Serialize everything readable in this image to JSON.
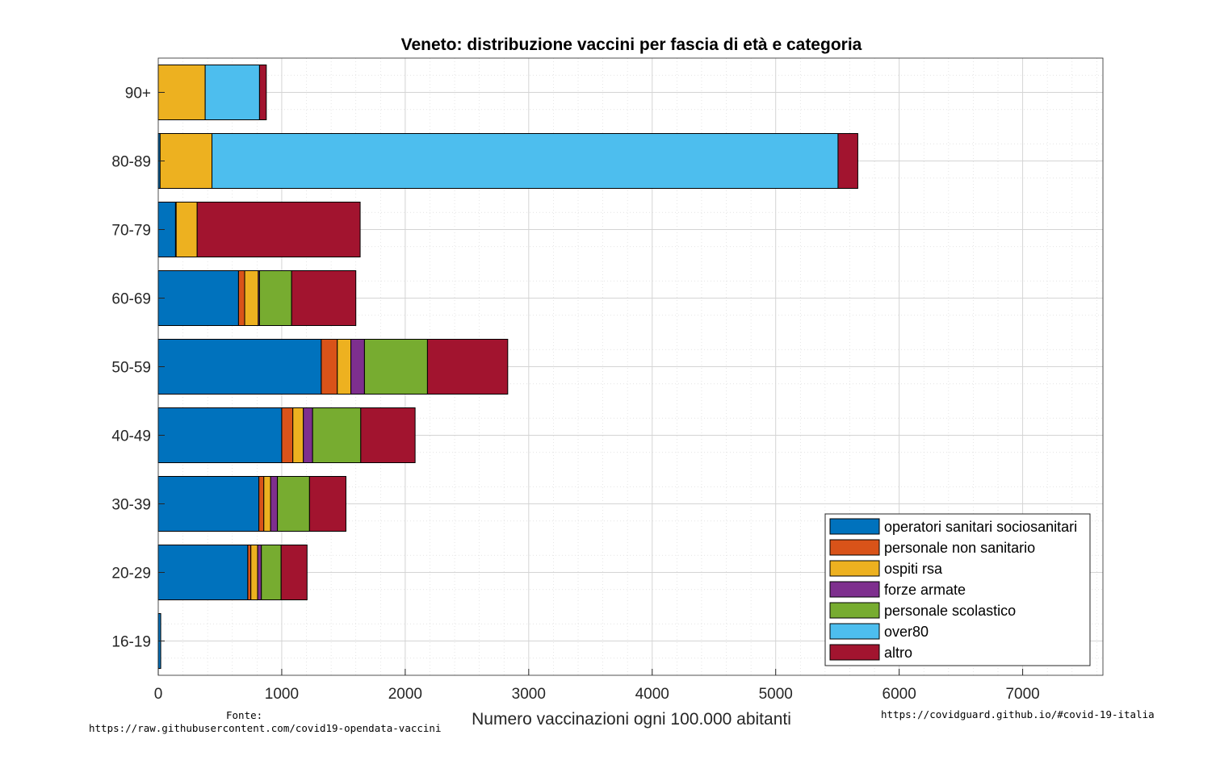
{
  "chart_data": {
    "type": "bar",
    "orientation": "horizontal",
    "stacked": true,
    "title": "Veneto: distribuzione vaccini per fascia di età e categoria",
    "xlabel": "Numero vaccinazioni ogni 100.000 abitanti",
    "ylabel": "",
    "xlim": [
      0,
      7650
    ],
    "xticks": [
      0,
      1000,
      2000,
      3000,
      4000,
      5000,
      6000,
      7000
    ],
    "grid": true,
    "minor_grid": true,
    "legend_position": "bottom-right",
    "categories": [
      "90+",
      "80-89",
      "70-79",
      "60-69",
      "50-59",
      "40-49",
      "30-39",
      "20-29",
      "16-19"
    ],
    "series": [
      {
        "name": "operatori sanitari sociosanitari",
        "color": "#0072BD",
        "values": [
          0,
          15,
          140,
          650,
          1320,
          1000,
          815,
          725,
          20
        ]
      },
      {
        "name": "personale non sanitario",
        "color": "#D95319",
        "values": [
          0,
          0,
          5,
          50,
          130,
          90,
          40,
          25,
          0
        ]
      },
      {
        "name": "ospiti rsa",
        "color": "#EDB120",
        "values": [
          380,
          420,
          170,
          110,
          110,
          85,
          55,
          55,
          0
        ]
      },
      {
        "name": "forze armate",
        "color": "#7E2F8E",
        "values": [
          0,
          0,
          0,
          10,
          110,
          75,
          55,
          30,
          0
        ]
      },
      {
        "name": "personale scolastico",
        "color": "#77AC30",
        "values": [
          0,
          0,
          0,
          260,
          510,
          390,
          260,
          160,
          0
        ]
      },
      {
        "name": "over80",
        "color": "#4DBEEE",
        "values": [
          440,
          5070,
          0,
          0,
          0,
          0,
          0,
          0,
          0
        ]
      },
      {
        "name": "altro",
        "color": "#A2142F",
        "values": [
          55,
          160,
          1320,
          520,
          650,
          440,
          295,
          210,
          0
        ]
      }
    ]
  },
  "footer": {
    "source_label": "Fonte:",
    "source_url": "https://raw.githubusercontent.com/covid19-opendata-vaccini",
    "site_url": "https://covidguard.github.io/#covid-19-italia"
  }
}
